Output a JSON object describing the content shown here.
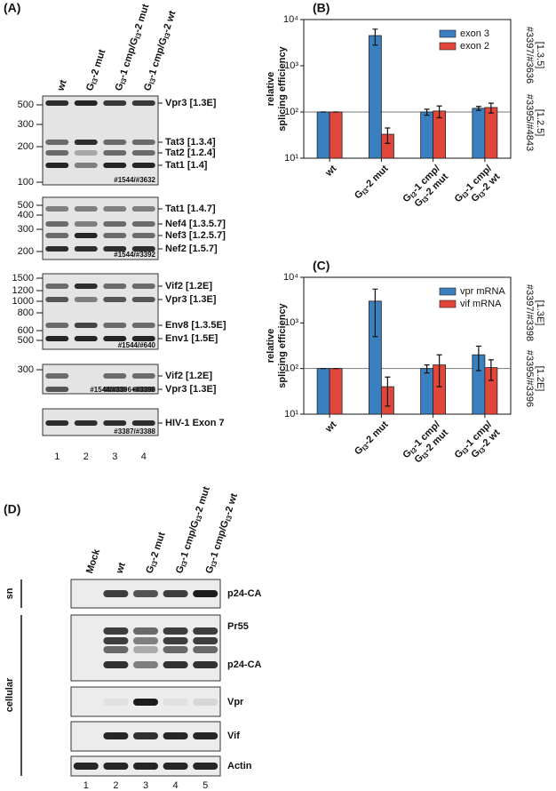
{
  "panels": {
    "a": "(A)",
    "b": "(B)",
    "c": "(C)",
    "d": "(D)"
  },
  "gel_figure": {
    "lanes": [
      [
        [
          "wt"
        ]
      ],
      [
        [
          "G",
          "I3",
          "-2 mut"
        ]
      ],
      [
        [
          "G",
          "I3",
          "-1 cmp/G",
          "I3",
          "-2 mut"
        ]
      ],
      [
        [
          "G",
          "I3",
          "-1 cmp/G",
          "I3",
          "-2 wt"
        ]
      ]
    ],
    "gels": [
      {
        "markers": [
          500,
          300,
          200,
          100
        ],
        "bands": [
          {
            "text": "Vpr3 [1.3E]",
            "color": "#3a7fc0"
          },
          {
            "text": "Tat3 [1.3.4]",
            "color": "#3a7fc0"
          },
          {
            "text": "Tat2 [1.2.4]",
            "color": "#e0463a"
          },
          {
            "text": "Tat1 [1.4]",
            "color": "#111111"
          }
        ],
        "primers": "#1544/#3632"
      },
      {
        "markers": [
          500,
          400,
          300,
          200
        ],
        "bands": [
          {
            "text": "Tat1 [1.4.7]",
            "color": "#111111"
          },
          {
            "text": "Nef4 [1.3.5.7]",
            "color": "#3a7fc0"
          },
          {
            "text": "Nef3 [1.2.5.7]",
            "color": "#e0463a"
          },
          {
            "text": "Nef2 [1.5.7]",
            "color": "#111111"
          }
        ],
        "primers": "#1544/#3392"
      },
      {
        "markers": [
          1500,
          1200,
          1000,
          800,
          600,
          500
        ],
        "bands": [
          {
            "text": "Vif2 [1.2E]",
            "color": "#e0463a"
          },
          {
            "text": "Vpr3 [1.3E]",
            "color": "#3a7fc0"
          },
          {
            "text": "Env8 [1.3.5E]",
            "color": "#3a7fc0"
          },
          {
            "text": "Env1 [1.5E]",
            "color": "#111111"
          }
        ],
        "primers": "#1544/#640"
      },
      {
        "markers": [
          300
        ],
        "bands": [
          {
            "text": "Vif2 [1.2E]",
            "color": "#e0463a"
          },
          {
            "text": "Vpr3 [1.3E]",
            "color": "#3a7fc0"
          }
        ],
        "primers": "#1544/#3396+#3398"
      },
      {
        "markers": [],
        "bands": [
          {
            "text": "HIV-1 Exon 7",
            "color": "#111111"
          }
        ],
        "primers": "#3387/#3388"
      }
    ],
    "lane_numbers": [
      "1",
      "2",
      "3",
      "4"
    ]
  },
  "chart_data": [
    {
      "type": "bar",
      "ylabel": [
        "relative",
        "splicing efficiency"
      ],
      "categories": [
        [
          [
            "wt"
          ]
        ],
        [
          [
            "G",
            "I3",
            "-2 mut"
          ]
        ],
        [
          [
            "G",
            "I3",
            "-1 cmp/"
          ],
          [
            "G",
            "I3",
            "-2 mut"
          ]
        ],
        [
          [
            "G",
            "I3",
            "-1 cmp/"
          ],
          [
            "G",
            "I3",
            "-2 wt"
          ]
        ]
      ],
      "series": [
        {
          "name": "exon 3",
          "color": "#3a7fc0",
          "values": [
            100,
            4500,
            100,
            120
          ],
          "errors": [
            0,
            1700,
            15,
            12
          ]
        },
        {
          "name": "exon 2",
          "color": "#e0463a",
          "values": [
            100,
            33,
            105,
            125
          ],
          "errors": [
            0,
            12,
            30,
            30
          ]
        }
      ],
      "log_scale": true,
      "ylim": [
        10,
        10000
      ],
      "yticks": [
        {
          "value": 10,
          "label": "10¹"
        },
        {
          "value": 100,
          "label": "10²"
        },
        {
          "value": 1000,
          "label": "10³"
        },
        {
          "value": 10000,
          "label": "10⁴"
        }
      ],
      "hline": 100,
      "legend": "upper right",
      "right_labels": [
        {
          "lines": [
            "#3397/#3636",
            "[1.3.5]"
          ],
          "color": "#3a7fc0"
        },
        {
          "lines": [
            "#3395/#4843",
            "[1.2.5]"
          ],
          "color": "#e0463a"
        }
      ]
    },
    {
      "type": "bar",
      "ylabel": [
        "relative",
        "splicing efficiency"
      ],
      "categories": [
        [
          [
            "wt"
          ]
        ],
        [
          [
            "G",
            "I3",
            "-2 mut"
          ]
        ],
        [
          [
            "G",
            "I3",
            "-1 cmp/"
          ],
          [
            "G",
            "I3",
            "-2 mut"
          ]
        ],
        [
          [
            "G",
            "I3",
            "-1 cmp/"
          ],
          [
            "G",
            "I3",
            "-2 wt"
          ]
        ]
      ],
      "series": [
        {
          "name": "vpr mRNA",
          "color": "#3a7fc0",
          "values": [
            100,
            3000,
            100,
            200
          ],
          "errors": [
            0,
            2500,
            20,
            110
          ]
        },
        {
          "name": "vif mRNA",
          "color": "#e0463a",
          "values": [
            100,
            40,
            120,
            105
          ],
          "errors": [
            0,
            25,
            80,
            50
          ]
        }
      ],
      "log_scale": true,
      "ylim": [
        10,
        10000
      ],
      "yticks": [
        {
          "value": 10,
          "label": "10¹"
        },
        {
          "value": 100,
          "label": "10²"
        },
        {
          "value": 1000,
          "label": "10³"
        },
        {
          "value": 10000,
          "label": "10⁴"
        }
      ],
      "hline": 100,
      "legend": "upper right",
      "right_labels": [
        {
          "lines": [
            "#3397/#3398",
            "[1.3E]"
          ],
          "color": "#3a7fc0"
        },
        {
          "lines": [
            "#3395/#3396",
            "[1.2E]"
          ],
          "color": "#e0463a"
        }
      ]
    }
  ],
  "western": {
    "lanes": [
      [
        [
          "Mock"
        ]
      ],
      [
        [
          "wt"
        ]
      ],
      [
        [
          "G",
          "I3",
          "-2 mut"
        ]
      ],
      [
        [
          "G",
          "I3",
          "-1 cmp/G",
          "I3",
          "-2 mut"
        ]
      ],
      [
        [
          "G",
          "I3",
          "-1 cmp/G",
          "I3",
          "-2 wt"
        ]
      ]
    ],
    "sides": {
      "sn": "sn",
      "cellular": "cellular"
    },
    "blot_labels": [
      {
        "text": "p24-CA",
        "color": "#111111"
      },
      {
        "text": "Pr55",
        "color": "#111111"
      },
      {
        "text": "p24-CA",
        "color": "#111111"
      },
      {
        "text": "Vpr",
        "color": "#3a7fc0"
      },
      {
        "text": "Vif",
        "color": "#e0463a"
      },
      {
        "text": "Actin",
        "color": "#111111"
      }
    ],
    "lane_numbers": [
      "1",
      "2",
      "3",
      "4",
      "5"
    ]
  }
}
